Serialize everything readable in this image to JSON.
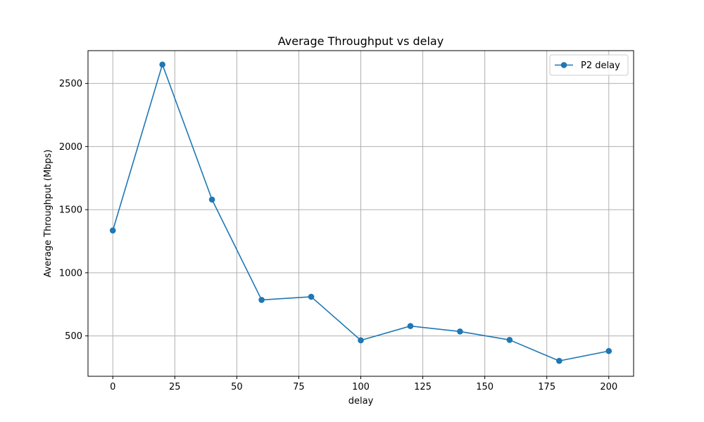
{
  "chart_data": {
    "type": "line",
    "title": "Average Throughput vs delay",
    "xlabel": "delay",
    "ylabel": "Average Throughput (Mbps)",
    "xlim": [
      -10,
      210
    ],
    "ylim": [
      180,
      2760
    ],
    "xticks": [
      0,
      25,
      50,
      75,
      100,
      125,
      150,
      175,
      200
    ],
    "yticks": [
      500,
      1000,
      1500,
      2000,
      2500
    ],
    "grid": true,
    "legend_position": "top-right",
    "series": [
      {
        "name": "P2 delay",
        "color": "#1f77b4",
        "marker": "circle",
        "x": [
          0,
          20,
          40,
          60,
          80,
          100,
          120,
          140,
          160,
          180,
          200
        ],
        "y": [
          1335,
          2650,
          1580,
          785,
          810,
          465,
          578,
          535,
          468,
          302,
          380
        ]
      }
    ]
  }
}
